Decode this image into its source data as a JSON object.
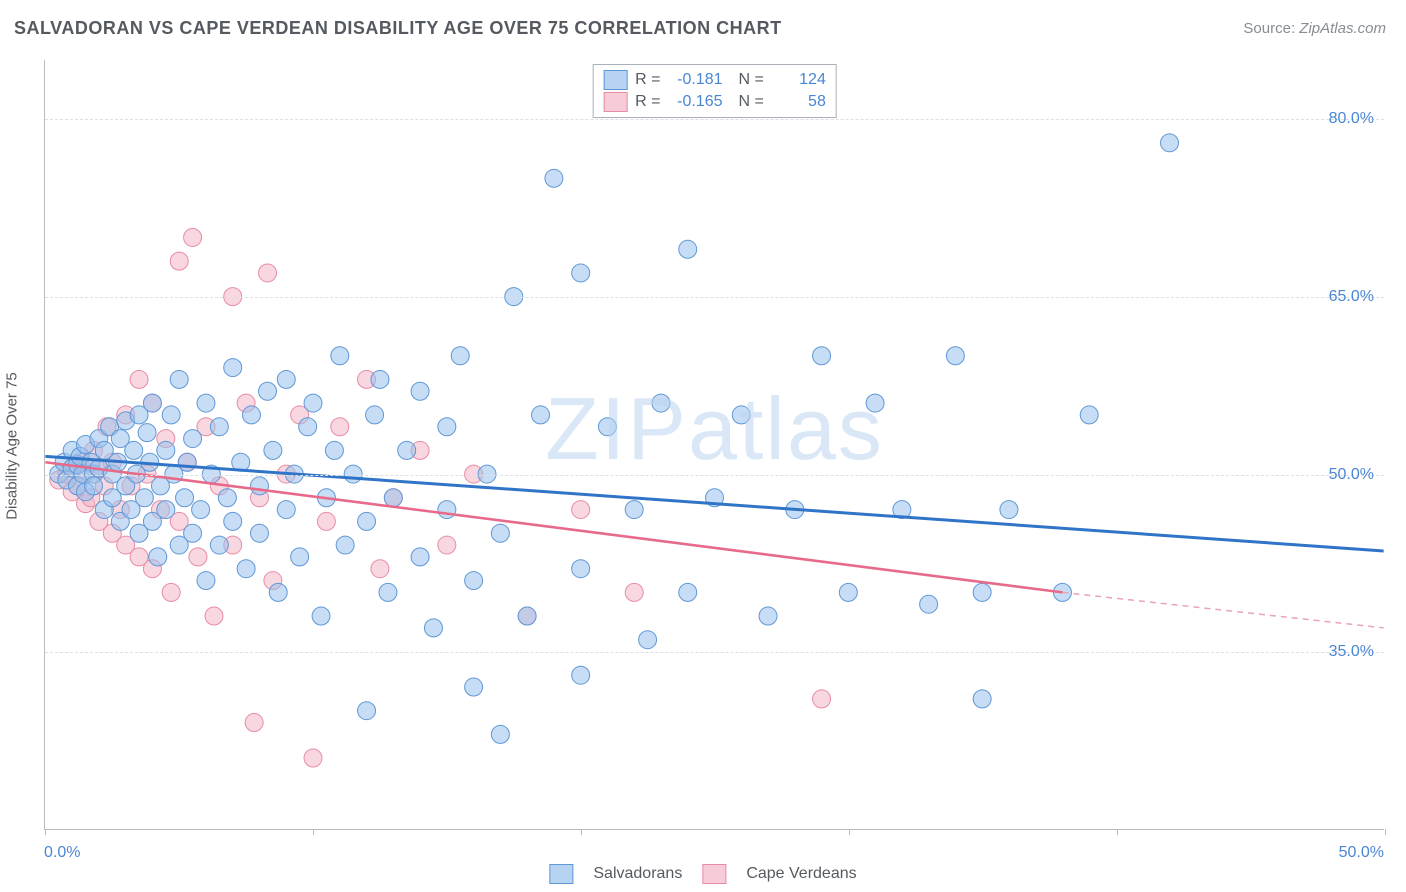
{
  "title": "SALVADORAN VS CAPE VERDEAN DISABILITY AGE OVER 75 CORRELATION CHART",
  "source_label": "Source: ",
  "source_name": "ZipAtlas.com",
  "ylabel": "Disability Age Over 75",
  "watermark": "ZIPatlas",
  "chart": {
    "type": "scatter",
    "xlim": [
      0.0,
      50.0
    ],
    "ylim": [
      20.0,
      85.0
    ],
    "y_ticks": [
      35.0,
      50.0,
      65.0,
      80.0
    ],
    "y_tick_labels": [
      "35.0%",
      "50.0%",
      "65.0%",
      "80.0%"
    ],
    "x_min_label": "0.0%",
    "x_max_label": "50.0%",
    "x_tick_positions_pct": [
      0,
      20,
      40,
      60,
      80,
      100
    ],
    "background_color": "#ffffff",
    "grid_color": "#dcdfe3",
    "marker_radius": 9,
    "series": {
      "a": {
        "name": "Salvadorans",
        "fill": "#99c1ec",
        "stroke": "#5f98d6",
        "R": "-0.181",
        "N": "124",
        "trend": {
          "x1": 0.0,
          "y1": 51.5,
          "x2": 50.0,
          "y2": 43.5,
          "color": "#2f74c7"
        },
        "points": [
          [
            0.5,
            50
          ],
          [
            0.7,
            51
          ],
          [
            0.8,
            49.5
          ],
          [
            1,
            50.5
          ],
          [
            1,
            52
          ],
          [
            1.2,
            49
          ],
          [
            1.2,
            50.8
          ],
          [
            1.3,
            51.5
          ],
          [
            1.4,
            50
          ],
          [
            1.5,
            48.5
          ],
          [
            1.5,
            52.5
          ],
          [
            1.7,
            51
          ],
          [
            1.8,
            50
          ],
          [
            1.8,
            49
          ],
          [
            2,
            53
          ],
          [
            2,
            50.5
          ],
          [
            2.2,
            47
          ],
          [
            2.2,
            52
          ],
          [
            2.4,
            54
          ],
          [
            2.5,
            50
          ],
          [
            2.5,
            48
          ],
          [
            2.7,
            51
          ],
          [
            2.8,
            53
          ],
          [
            2.8,
            46
          ],
          [
            3,
            54.5
          ],
          [
            3,
            49
          ],
          [
            3.2,
            47
          ],
          [
            3.3,
            52
          ],
          [
            3.4,
            50
          ],
          [
            3.5,
            55
          ],
          [
            3.5,
            45
          ],
          [
            3.7,
            48
          ],
          [
            3.8,
            53.5
          ],
          [
            3.9,
            51
          ],
          [
            4,
            56
          ],
          [
            4,
            46
          ],
          [
            4.2,
            43
          ],
          [
            4.3,
            49
          ],
          [
            4.5,
            52
          ],
          [
            4.5,
            47
          ],
          [
            4.7,
            55
          ],
          [
            4.8,
            50
          ],
          [
            5,
            44
          ],
          [
            5,
            58
          ],
          [
            5.2,
            48
          ],
          [
            5.3,
            51
          ],
          [
            5.5,
            45
          ],
          [
            5.5,
            53
          ],
          [
            5.8,
            47
          ],
          [
            6,
            56
          ],
          [
            6,
            41
          ],
          [
            6.2,
            50
          ],
          [
            6.5,
            54
          ],
          [
            6.5,
            44
          ],
          [
            6.8,
            48
          ],
          [
            7,
            59
          ],
          [
            7,
            46
          ],
          [
            7.3,
            51
          ],
          [
            7.5,
            42
          ],
          [
            7.7,
            55
          ],
          [
            8,
            49
          ],
          [
            8,
            45
          ],
          [
            8.3,
            57
          ],
          [
            8.5,
            52
          ],
          [
            8.7,
            40
          ],
          [
            9,
            58
          ],
          [
            9,
            47
          ],
          [
            9.3,
            50
          ],
          [
            9.5,
            43
          ],
          [
            9.8,
            54
          ],
          [
            10,
            56
          ],
          [
            10.3,
            38
          ],
          [
            10.5,
            48
          ],
          [
            10.8,
            52
          ],
          [
            11,
            60
          ],
          [
            11.2,
            44
          ],
          [
            11.5,
            50
          ],
          [
            12,
            46
          ],
          [
            12.3,
            55
          ],
          [
            12.5,
            58
          ],
          [
            12.8,
            40
          ],
          [
            13,
            48
          ],
          [
            13.5,
            52
          ],
          [
            14,
            57
          ],
          [
            14,
            43
          ],
          [
            14.5,
            37
          ],
          [
            15,
            54
          ],
          [
            15,
            47
          ],
          [
            15.5,
            60
          ],
          [
            16,
            41
          ],
          [
            16.5,
            50
          ],
          [
            17,
            45
          ],
          [
            17.5,
            65
          ],
          [
            18,
            38
          ],
          [
            18.5,
            55
          ],
          [
            19,
            75
          ],
          [
            20,
            67
          ],
          [
            20,
            42
          ],
          [
            21,
            54
          ],
          [
            22,
            47
          ],
          [
            22.5,
            36
          ],
          [
            23,
            56
          ],
          [
            24,
            69
          ],
          [
            24,
            40
          ],
          [
            25,
            48
          ],
          [
            26,
            55
          ],
          [
            27,
            38
          ],
          [
            28,
            47
          ],
          [
            29,
            60
          ],
          [
            30,
            40
          ],
          [
            31,
            56
          ],
          [
            32,
            47
          ],
          [
            33,
            39
          ],
          [
            34,
            60
          ],
          [
            35,
            40
          ],
          [
            35,
            31
          ],
          [
            36,
            47
          ],
          [
            38,
            40
          ],
          [
            39,
            55
          ],
          [
            42,
            78
          ],
          [
            17,
            28
          ],
          [
            12,
            30
          ],
          [
            16,
            32
          ],
          [
            20,
            33
          ]
        ]
      },
      "b": {
        "name": "Cape Verdeans",
        "fill": "#f4b6c7",
        "stroke": "#e88ca4",
        "R": "-0.165",
        "N": "58",
        "trend": {
          "x1": 0.0,
          "y1": 51.0,
          "x2": 38.0,
          "y2": 40.0,
          "ext_x2": 50.0,
          "ext_y2": 37.0,
          "color": "#e86a8a"
        },
        "points": [
          [
            0.5,
            49.5
          ],
          [
            0.8,
            50
          ],
          [
            1,
            50.5
          ],
          [
            1,
            48.5
          ],
          [
            1.2,
            49
          ],
          [
            1.3,
            51
          ],
          [
            1.5,
            47.5
          ],
          [
            1.5,
            50
          ],
          [
            1.7,
            48
          ],
          [
            1.8,
            52
          ],
          [
            2,
            46
          ],
          [
            2,
            50.5
          ],
          [
            2.2,
            49
          ],
          [
            2.3,
            54
          ],
          [
            2.5,
            45
          ],
          [
            2.5,
            51
          ],
          [
            2.8,
            47
          ],
          [
            3,
            55
          ],
          [
            3,
            44
          ],
          [
            3.2,
            49
          ],
          [
            3.5,
            58
          ],
          [
            3.5,
            43
          ],
          [
            3.8,
            50
          ],
          [
            4,
            56
          ],
          [
            4,
            42
          ],
          [
            4.3,
            47
          ],
          [
            4.5,
            53
          ],
          [
            4.7,
            40
          ],
          [
            5,
            68
          ],
          [
            5,
            46
          ],
          [
            5.3,
            51
          ],
          [
            5.5,
            70
          ],
          [
            5.7,
            43
          ],
          [
            6,
            54
          ],
          [
            6.3,
            38
          ],
          [
            6.5,
            49
          ],
          [
            7,
            65
          ],
          [
            7,
            44
          ],
          [
            7.5,
            56
          ],
          [
            7.8,
            29
          ],
          [
            8,
            48
          ],
          [
            8.3,
            67
          ],
          [
            8.5,
            41
          ],
          [
            9,
            50
          ],
          [
            9.5,
            55
          ],
          [
            10,
            26
          ],
          [
            10.5,
            46
          ],
          [
            11,
            54
          ],
          [
            12,
            58
          ],
          [
            12.5,
            42
          ],
          [
            13,
            48
          ],
          [
            14,
            52
          ],
          [
            15,
            44
          ],
          [
            16,
            50
          ],
          [
            18,
            38
          ],
          [
            20,
            47
          ],
          [
            22,
            40
          ],
          [
            29,
            31
          ]
        ]
      }
    }
  }
}
